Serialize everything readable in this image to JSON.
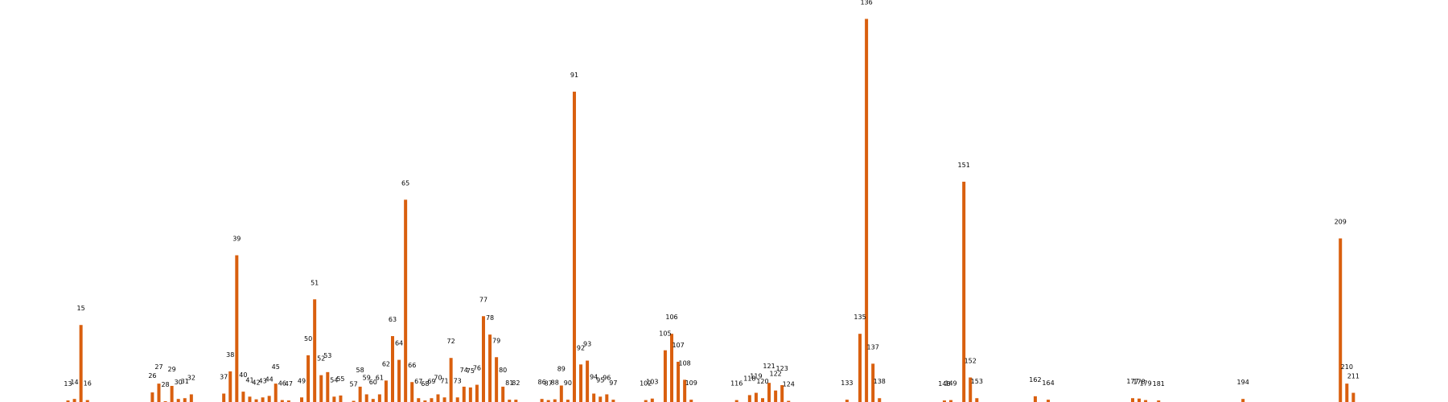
{
  "chart_data": {
    "type": "bar",
    "title": "",
    "xlabel": "",
    "ylabel": "",
    "color": "#d95f0e",
    "ylim": [
      0,
      1.0
    ],
    "grid": false,
    "axes_visible": false,
    "x": [
      13,
      14,
      15,
      16,
      26,
      27,
      28,
      29,
      30,
      31,
      32,
      37,
      38,
      39,
      40,
      41,
      42,
      43,
      44,
      45,
      46,
      47,
      49,
      50,
      51,
      52,
      53,
      54,
      55,
      57,
      58,
      59,
      60,
      61,
      62,
      63,
      64,
      65,
      66,
      67,
      68,
      69,
      70,
      71,
      72,
      73,
      74,
      75,
      76,
      77,
      78,
      79,
      80,
      81,
      82,
      86,
      87,
      88,
      89,
      90,
      91,
      92,
      93,
      94,
      95,
      96,
      97,
      102,
      103,
      105,
      106,
      107,
      108,
      109,
      116,
      118,
      119,
      120,
      121,
      122,
      123,
      124,
      133,
      135,
      136,
      137,
      138,
      148,
      149,
      151,
      152,
      153,
      162,
      164,
      177,
      178,
      179,
      181,
      194,
      209,
      210,
      211
    ],
    "labels": [
      "13",
      "14",
      "15",
      "16",
      "26",
      "27",
      "28",
      "29",
      "30",
      "31",
      "32",
      "37",
      "38",
      "39",
      "40",
      "41",
      "42",
      "43",
      "44",
      "45",
      "46",
      "47",
      "49",
      "50",
      "51",
      "52",
      "53",
      "54",
      "55",
      "57",
      "58",
      "59",
      "60",
      "61",
      "62",
      "63",
      "64",
      "65",
      "66",
      "67",
      "68",
      "69",
      "70",
      "71",
      "72",
      "73",
      "74",
      "75",
      "76",
      "77",
      "78",
      "79",
      "80",
      "81",
      "82",
      "86",
      "87",
      "88",
      "89",
      "90",
      "91",
      "92",
      "93",
      "94",
      "95",
      "96",
      "97",
      "102",
      "103",
      "105",
      "106",
      "107",
      "108",
      "109",
      "116",
      "118",
      "119",
      "120",
      "121",
      "122",
      "123",
      "124",
      "133",
      "135",
      "136",
      "137",
      "138",
      "148",
      "149",
      "151",
      "152",
      "153",
      "162",
      "164",
      "177",
      "178",
      "179",
      "181",
      "194",
      "209",
      "210",
      "211"
    ],
    "values": [
      0.004,
      0.008,
      0.201,
      0.005,
      0.025,
      0.048,
      0.002,
      0.042,
      0.008,
      0.01,
      0.02,
      0.022,
      0.08,
      0.383,
      0.027,
      0.014,
      0.007,
      0.012,
      0.016,
      0.048,
      0.005,
      0.004,
      0.012,
      0.122,
      0.268,
      0.07,
      0.078,
      0.014,
      0.017,
      0.003,
      0.04,
      0.02,
      0.008,
      0.02,
      0.056,
      0.172,
      0.11,
      0.528,
      0.052,
      0.01,
      0.004,
      0.01,
      0.02,
      0.012,
      0.115,
      0.012,
      0.04,
      0.038,
      0.045,
      0.224,
      0.176,
      0.117,
      0.04,
      0.006,
      0.006,
      0.008,
      0.005,
      0.007,
      0.043,
      0.006,
      0.81,
      0.098,
      0.108,
      0.022,
      0.014,
      0.02,
      0.006,
      0.005,
      0.009,
      0.135,
      0.178,
      0.105,
      0.058,
      0.006,
      0.005,
      0.018,
      0.024,
      0.01,
      0.05,
      0.03,
      0.044,
      0.003,
      0.006,
      0.178,
      1.0,
      0.1,
      0.01,
      0.004,
      0.005,
      0.575,
      0.064,
      0.01,
      0.015,
      0.006,
      0.01,
      0.009,
      0.005,
      0.004,
      0.008,
      0.427,
      0.048,
      0.024
    ]
  }
}
